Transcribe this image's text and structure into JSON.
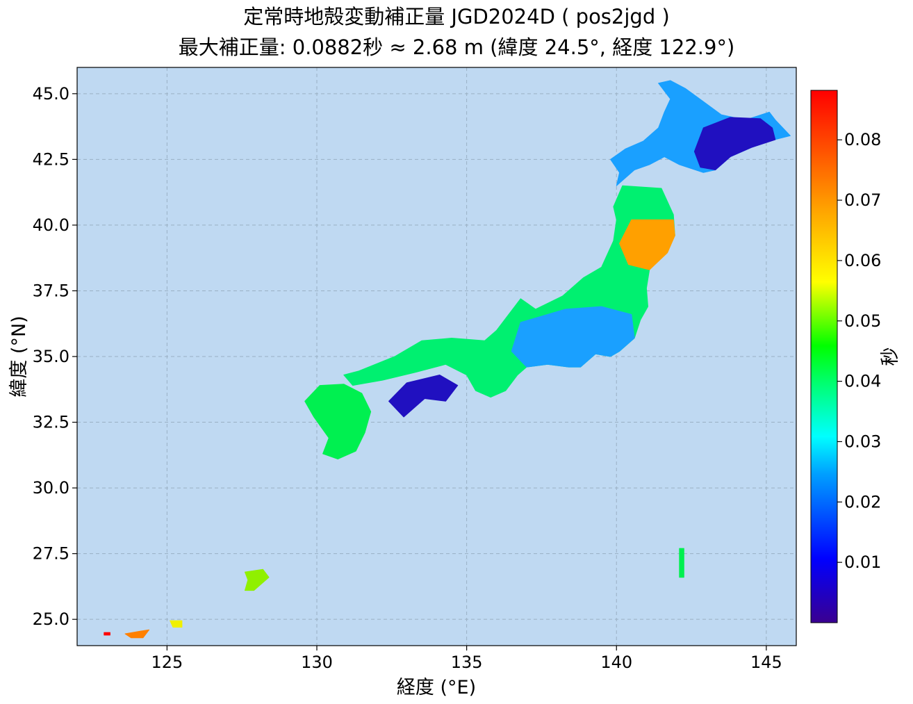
{
  "title": {
    "line1": "定常時地殻変動補正量 JGD2024D ( pos2jgd )",
    "line2": "最大補正量: 0.0882秒 ≈ 2.68 m  (緯度 24.5°, 経度 122.9°)"
  },
  "chart_data": {
    "type": "heatmap",
    "xlabel": "経度 (°E)",
    "ylabel": "緯度 (°N)",
    "xlim": [
      122,
      146
    ],
    "ylim": [
      24,
      46
    ],
    "x_ticks": [
      125,
      130,
      135,
      140,
      145
    ],
    "x_tick_labels": [
      "125",
      "130",
      "135",
      "140",
      "145"
    ],
    "y_ticks": [
      25.0,
      27.5,
      30.0,
      32.5,
      35.0,
      37.5,
      40.0,
      42.5,
      45.0
    ],
    "y_tick_labels": [
      "25.0",
      "27.5",
      "30.0",
      "32.5",
      "35.0",
      "37.5",
      "40.0",
      "42.5",
      "45.0"
    ],
    "grid": true,
    "background_color": "#bfd9f2",
    "colormap": "jet-like (purple-blue-cyan-green-yellow-red)",
    "colorbar": {
      "label": "秒",
      "range": [
        0.0,
        0.0882
      ],
      "ticks": [
        0.01,
        0.02,
        0.03,
        0.04,
        0.05,
        0.06,
        0.07,
        0.08
      ],
      "tick_labels": [
        "0.01",
        "0.02",
        "0.03",
        "0.04",
        "0.05",
        "0.06",
        "0.07",
        "0.08"
      ]
    },
    "maximum": {
      "value_sec": 0.0882,
      "value_m": 2.68,
      "lat": 24.5,
      "lon": 122.9
    },
    "regions": [
      {
        "name": "hokkaido",
        "value": 0.018,
        "color": "#1aa0ff",
        "polygon": [
          [
            141.4,
            45.4
          ],
          [
            141.8,
            45.5
          ],
          [
            142.3,
            45.2
          ],
          [
            142.9,
            44.7
          ],
          [
            143.5,
            44.2
          ],
          [
            144.3,
            44.0
          ],
          [
            145.1,
            44.3
          ],
          [
            145.3,
            44.0
          ],
          [
            145.8,
            43.4
          ],
          [
            145.1,
            43.2
          ],
          [
            144.5,
            42.95
          ],
          [
            143.8,
            42.6
          ],
          [
            143.3,
            42.1
          ],
          [
            142.9,
            42.0
          ],
          [
            142.1,
            42.3
          ],
          [
            141.6,
            42.6
          ],
          [
            141.1,
            42.3
          ],
          [
            140.6,
            42.1
          ],
          [
            140.0,
            41.5
          ],
          [
            140.1,
            42.0
          ],
          [
            139.8,
            42.5
          ],
          [
            140.3,
            42.9
          ],
          [
            140.9,
            43.2
          ],
          [
            141.4,
            43.7
          ],
          [
            141.6,
            44.3
          ],
          [
            141.8,
            44.8
          ]
        ]
      },
      {
        "name": "east-hokkaido",
        "value": 0.004,
        "color": "#2010c0",
        "polygon": [
          [
            142.9,
            43.7
          ],
          [
            143.8,
            44.1
          ],
          [
            144.8,
            44.05
          ],
          [
            145.2,
            43.7
          ],
          [
            145.3,
            43.25
          ],
          [
            144.5,
            42.95
          ],
          [
            143.8,
            42.6
          ],
          [
            143.3,
            42.1
          ],
          [
            142.8,
            42.2
          ],
          [
            142.6,
            42.8
          ]
        ]
      },
      {
        "name": "tohoku-honshu",
        "value": 0.035,
        "color": "#00f070",
        "polygon": [
          [
            140.2,
            41.5
          ],
          [
            141.5,
            41.4
          ],
          [
            141.9,
            40.4
          ],
          [
            141.95,
            39.6
          ],
          [
            141.6,
            38.9
          ],
          [
            141.1,
            38.3
          ],
          [
            141.0,
            37.6
          ],
          [
            141.05,
            36.9
          ],
          [
            140.8,
            36.4
          ],
          [
            140.6,
            35.7
          ],
          [
            140.1,
            35.2
          ],
          [
            139.8,
            35.0
          ],
          [
            139.3,
            35.1
          ],
          [
            138.8,
            34.6
          ],
          [
            138.4,
            34.6
          ],
          [
            137.7,
            34.7
          ],
          [
            137.0,
            34.6
          ],
          [
            136.7,
            34.3
          ],
          [
            136.3,
            33.7
          ],
          [
            135.8,
            33.45
          ],
          [
            135.3,
            33.7
          ],
          [
            135.0,
            34.3
          ],
          [
            134.3,
            34.7
          ],
          [
            133.3,
            34.4
          ],
          [
            132.2,
            34.1
          ],
          [
            131.2,
            33.9
          ],
          [
            130.9,
            34.3
          ],
          [
            131.4,
            34.45
          ],
          [
            132.6,
            35.0
          ],
          [
            133.5,
            35.6
          ],
          [
            134.5,
            35.7
          ],
          [
            135.6,
            35.6
          ],
          [
            136.0,
            36.0
          ],
          [
            136.8,
            37.2
          ],
          [
            137.3,
            36.8
          ],
          [
            138.2,
            37.3
          ],
          [
            138.9,
            38.0
          ],
          [
            139.5,
            38.4
          ],
          [
            139.9,
            39.4
          ],
          [
            140.0,
            40.2
          ],
          [
            139.9,
            40.7
          ]
        ]
      },
      {
        "name": "northeast-pacific",
        "value": 0.068,
        "color": "#ffa000",
        "polygon": [
          [
            140.5,
            40.2
          ],
          [
            141.9,
            40.2
          ],
          [
            141.95,
            39.6
          ],
          [
            141.7,
            38.95
          ],
          [
            141.1,
            38.3
          ],
          [
            140.4,
            38.5
          ],
          [
            140.1,
            39.3
          ]
        ]
      },
      {
        "name": "kanto-chubu",
        "value": 0.018,
        "color": "#1aa0ff",
        "polygon": [
          [
            136.8,
            36.3
          ],
          [
            138.3,
            36.8
          ],
          [
            139.5,
            36.9
          ],
          [
            140.5,
            36.6
          ],
          [
            140.6,
            35.7
          ],
          [
            140.1,
            35.2
          ],
          [
            139.8,
            35.0
          ],
          [
            139.3,
            35.1
          ],
          [
            138.8,
            34.6
          ],
          [
            138.4,
            34.6
          ],
          [
            137.7,
            34.7
          ],
          [
            137.0,
            34.6
          ],
          [
            136.5,
            35.2
          ]
        ]
      },
      {
        "name": "kyushu",
        "value": 0.038,
        "color": "#00f050",
        "polygon": [
          [
            130.1,
            33.9
          ],
          [
            130.9,
            33.95
          ],
          [
            131.5,
            33.6
          ],
          [
            131.8,
            32.9
          ],
          [
            131.6,
            32.1
          ],
          [
            131.3,
            31.4
          ],
          [
            130.7,
            31.1
          ],
          [
            130.2,
            31.3
          ],
          [
            130.4,
            31.9
          ],
          [
            129.9,
            32.7
          ],
          [
            129.6,
            33.3
          ]
        ]
      },
      {
        "name": "shikoku",
        "value": 0.004,
        "color": "#2010c0",
        "polygon": [
          [
            132.4,
            33.3
          ],
          [
            133.0,
            34.0
          ],
          [
            134.1,
            34.3
          ],
          [
            134.7,
            33.9
          ],
          [
            134.3,
            33.3
          ],
          [
            133.6,
            33.4
          ],
          [
            132.9,
            32.7
          ]
        ]
      },
      {
        "name": "okinawa",
        "value": 0.048,
        "color": "#90f000",
        "polygon": [
          [
            127.6,
            26.8
          ],
          [
            128.2,
            26.9
          ],
          [
            128.4,
            26.6
          ],
          [
            127.9,
            26.1
          ],
          [
            127.6,
            26.1
          ],
          [
            127.7,
            26.5
          ]
        ]
      },
      {
        "name": "miyako",
        "value": 0.058,
        "color": "#f0f000",
        "polygon": [
          [
            125.1,
            24.95
          ],
          [
            125.5,
            24.95
          ],
          [
            125.5,
            24.7
          ],
          [
            125.2,
            24.7
          ]
        ]
      },
      {
        "name": "ishigaki",
        "value": 0.07,
        "color": "#ff8000",
        "polygon": [
          [
            123.6,
            24.45
          ],
          [
            124.1,
            24.55
          ],
          [
            124.4,
            24.6
          ],
          [
            124.2,
            24.3
          ],
          [
            123.8,
            24.3
          ]
        ]
      },
      {
        "name": "yonaguni",
        "value": 0.0882,
        "color": "#ff0000",
        "polygon": [
          [
            122.9,
            24.5
          ],
          [
            123.1,
            24.5
          ],
          [
            123.1,
            24.4
          ],
          [
            122.9,
            24.4
          ]
        ]
      },
      {
        "name": "ogasawara",
        "value": 0.038,
        "color": "#00f050",
        "polygon": [
          [
            142.1,
            27.7
          ],
          [
            142.25,
            27.7
          ],
          [
            142.25,
            26.6
          ],
          [
            142.1,
            26.6
          ]
        ]
      }
    ]
  }
}
